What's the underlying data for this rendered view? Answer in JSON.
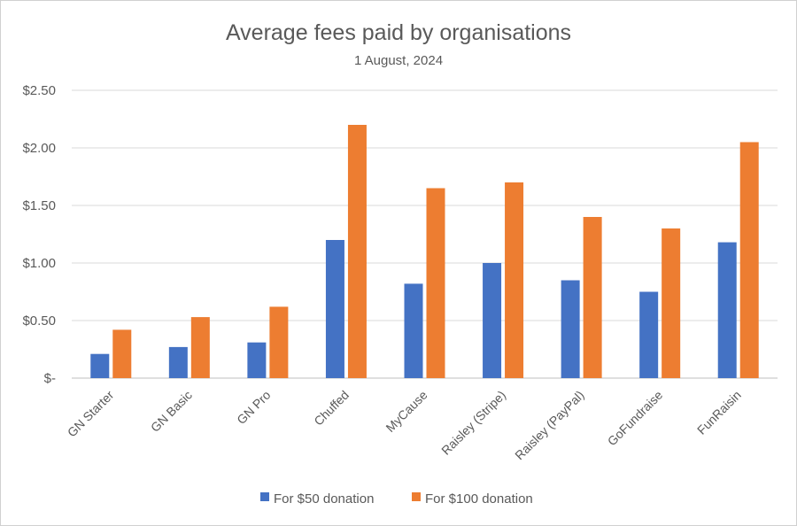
{
  "chart_data": {
    "type": "bar",
    "title": "Average fees paid by organisations",
    "subtitle": "1 August, 2024",
    "categories": [
      "GN Starter",
      "GN Basic",
      "GN Pro",
      "Chuffed",
      "MyCause",
      "Raisley (Stripe)",
      "Raisley (PayPal)",
      "GoFundraise",
      "FunRaisin"
    ],
    "series": [
      {
        "name": "For $50 donation",
        "color": "#4472c4",
        "values": [
          0.21,
          0.27,
          0.31,
          1.2,
          0.82,
          1.0,
          0.85,
          0.75,
          1.18
        ]
      },
      {
        "name": "For $100 donation",
        "color": "#ed7d31",
        "values": [
          0.42,
          0.53,
          0.62,
          2.2,
          1.65,
          1.7,
          1.4,
          1.3,
          2.05
        ]
      }
    ],
    "ylim": [
      0,
      2.5
    ],
    "yticks": [
      0,
      0.5,
      1.0,
      1.5,
      2.0,
      2.5
    ],
    "ytick_labels": [
      "$-",
      "$0.50",
      "$1.00",
      "$1.50",
      "$2.00",
      "$2.50"
    ],
    "grid": true,
    "legend_position": "bottom"
  }
}
